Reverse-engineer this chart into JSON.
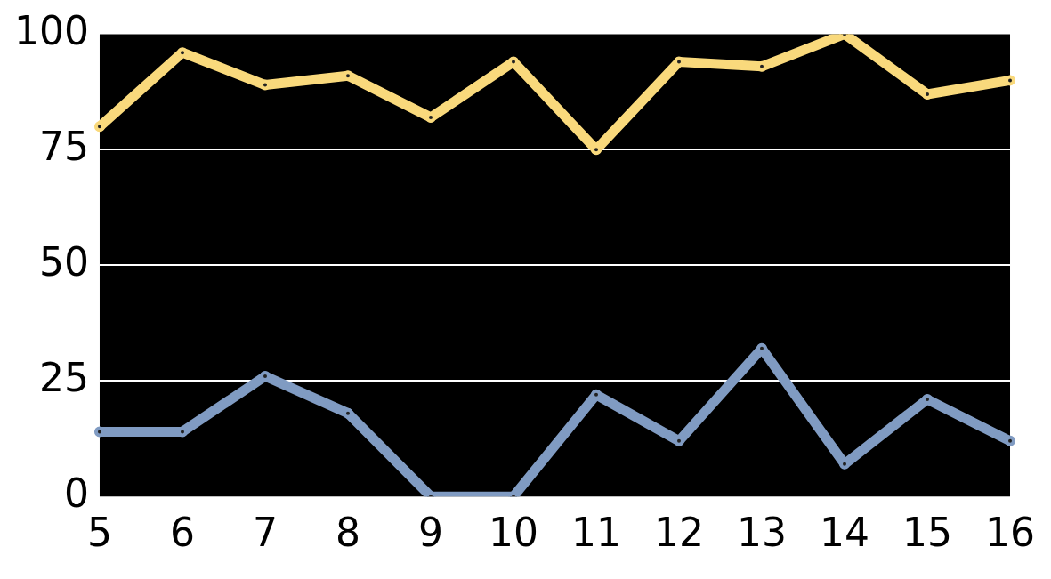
{
  "chart_data": {
    "type": "line",
    "categories": [
      "5",
      "6",
      "7",
      "8",
      "9",
      "10",
      "11",
      "12",
      "13",
      "14",
      "15",
      "16"
    ],
    "series": [
      {
        "color": "#f9d97c",
        "values": [
          80,
          96,
          89,
          91,
          82,
          94,
          75,
          94,
          93,
          100,
          87,
          90
        ]
      },
      {
        "color": "#809bc2",
        "values": [
          14,
          14,
          26,
          18,
          0,
          0,
          22,
          12,
          32,
          7,
          21,
          12
        ]
      }
    ],
    "ylim": [
      0,
      100
    ],
    "yticks": [
      0,
      25,
      50,
      75,
      100
    ],
    "grid": "y",
    "legend": false,
    "marker": "circle",
    "line_style": "solid"
  }
}
